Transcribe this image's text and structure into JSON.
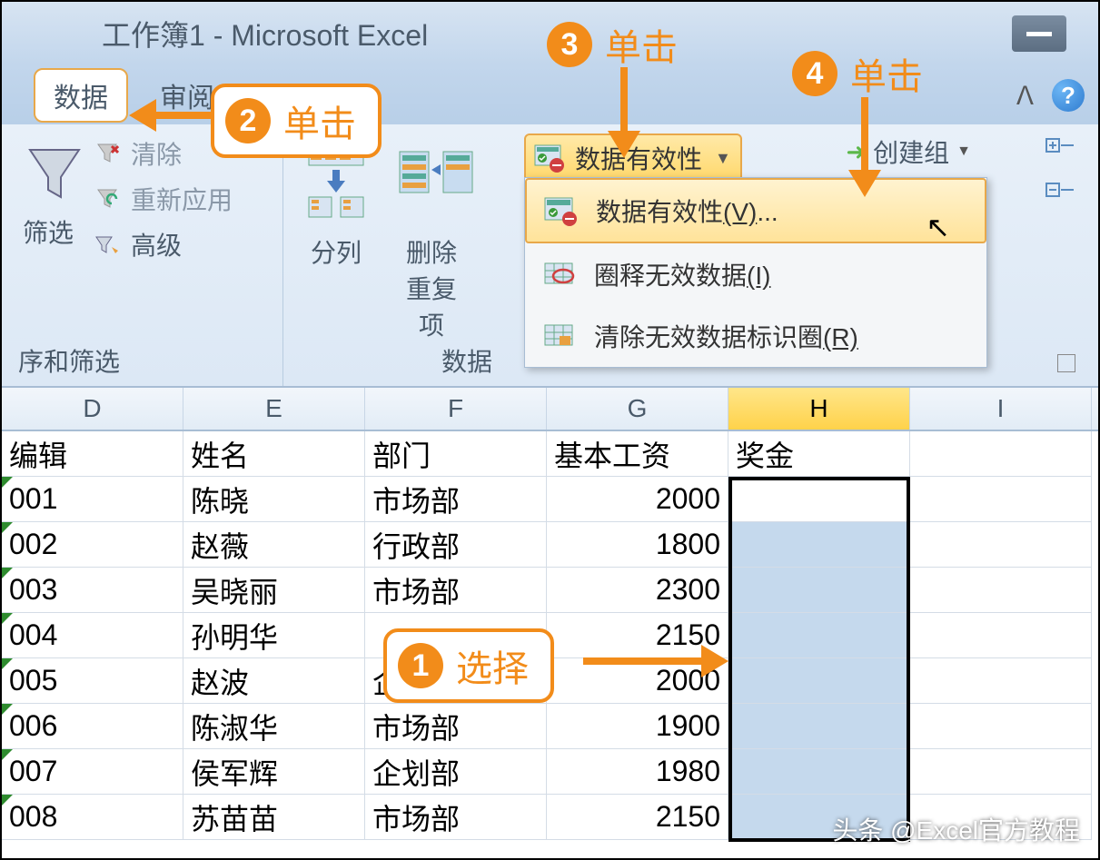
{
  "title": "工作簿1 - Microsoft Excel",
  "tabs": {
    "active": "数据",
    "inactive": "审阅"
  },
  "ribbon": {
    "filter": {
      "label": "筛选",
      "opts": [
        "清除",
        "重新应用",
        "高级"
      ],
      "group_label": "序和筛选"
    },
    "tools": {
      "text_to_cols": "分列",
      "remove_dup_l1": "删除",
      "remove_dup_l2": "重复项",
      "group_label": "数据"
    },
    "dv_button": "数据有效性",
    "create_group": "创建组",
    "dropdown": {
      "item1_text": "数据有效性",
      "item1_key": "(V)",
      "item1_suffix": "...",
      "item2_text": "圈释无效数据",
      "item2_key": "(I)",
      "item3_text": "清除无效数据标识圈",
      "item3_key": "(R)"
    }
  },
  "columns": [
    "D",
    "E",
    "F",
    "G",
    "H",
    "I"
  ],
  "selected_column": "H",
  "headers": {
    "D": "编辑",
    "E": "姓名",
    "F": "部门",
    "G": "基本工资",
    "H": "奖金",
    "I": ""
  },
  "rows": [
    {
      "D": "001",
      "E": "陈晓",
      "F": "市场部",
      "G": "2000"
    },
    {
      "D": "002",
      "E": "赵薇",
      "F": "行政部",
      "G": "1800"
    },
    {
      "D": "003",
      "E": "吴晓丽",
      "F": "市场部",
      "G": "2300"
    },
    {
      "D": "004",
      "E": "孙明华",
      "F": "",
      "G": "2150"
    },
    {
      "D": "005",
      "E": "赵波",
      "F": "企划部",
      "G": "2000"
    },
    {
      "D": "006",
      "E": "陈淑华",
      "F": "市场部",
      "G": "1900"
    },
    {
      "D": "007",
      "E": "侯军辉",
      "F": "企划部",
      "G": "1980"
    },
    {
      "D": "008",
      "E": "苏苗苗",
      "F": "市场部",
      "G": "2150"
    }
  ],
  "callouts": {
    "c1": {
      "num": "1",
      "text": "选择"
    },
    "c2": {
      "num": "2",
      "text": "单击"
    },
    "c3": {
      "num": "3",
      "text": "单击"
    },
    "c4": {
      "num": "4",
      "text": "单击"
    }
  },
  "watermark": "头条 @Excel官方教程",
  "colors": {
    "accent": "#f28c1a",
    "selected_bg": "#c5d9ed",
    "header_sel": "#ffd24a",
    "highlight_bg": "#ffe39a"
  }
}
